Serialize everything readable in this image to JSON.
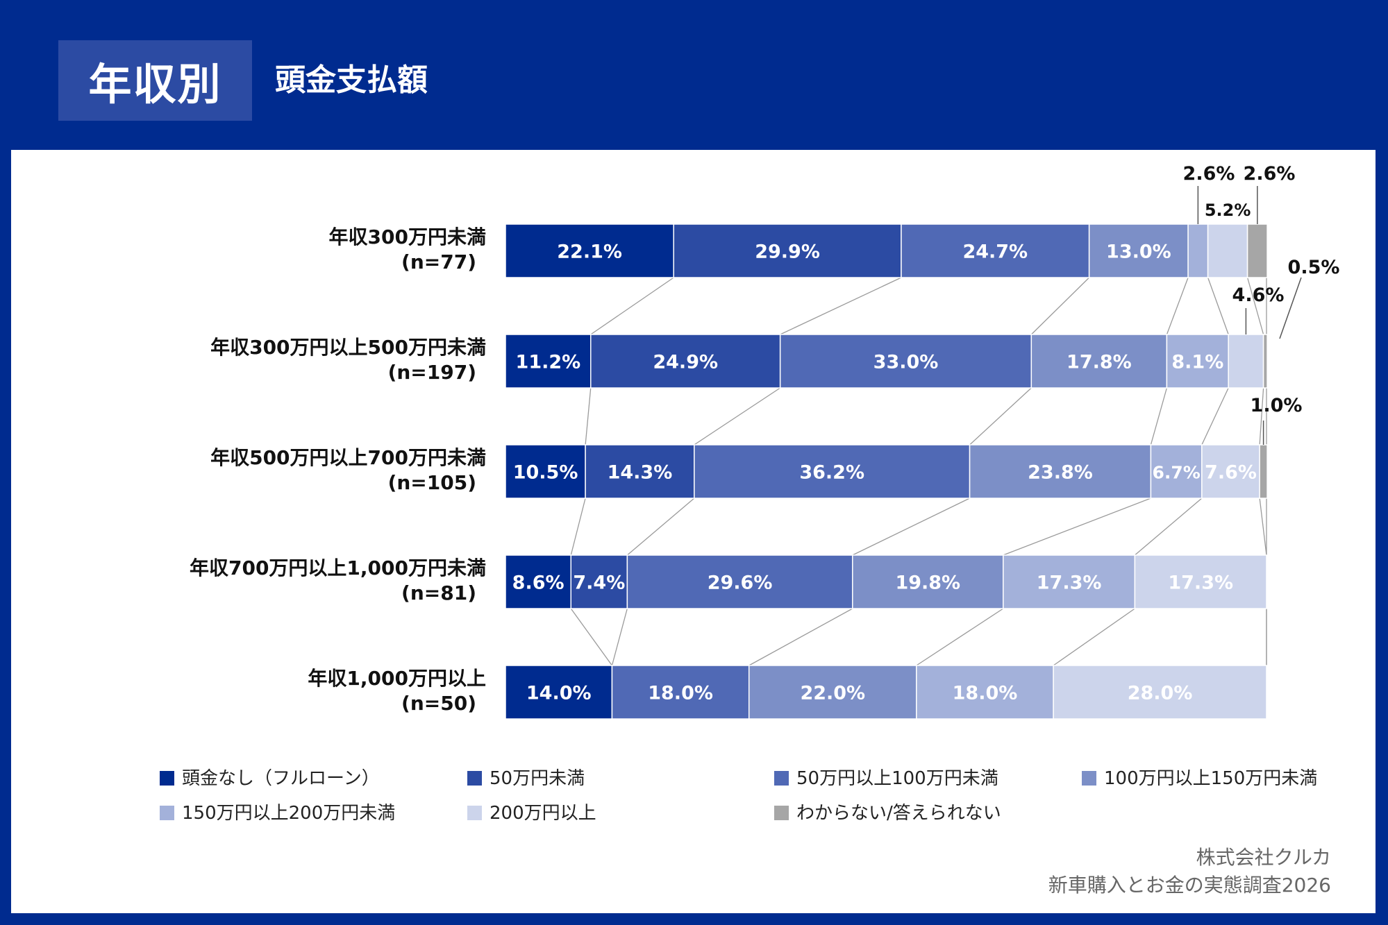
{
  "header": {
    "title": "年収別",
    "subtitle": "頭金支払額"
  },
  "source": {
    "company": "株式会社クルカ",
    "survey": "新車購入とお金の実態調査2026"
  },
  "colors": {
    "background": "#002B8F",
    "panel": "#FFFFFF",
    "title_box": "#2C4BA3"
  },
  "chart_data": {
    "type": "bar",
    "orientation": "horizontal-stacked-100",
    "title": "頭金支払額",
    "categories": [
      {
        "label": "年収300万円未満",
        "n": "(n=77)"
      },
      {
        "label": "年収300万円以上500万円未満",
        "n": "(n=197)"
      },
      {
        "label": "年収500万円以上700万円未満",
        "n": "(n=105)"
      },
      {
        "label": "年収700万円以上1,000万円未満",
        "n": "(n=81)"
      },
      {
        "label": "年収1,000万円以上",
        "n": "(n=50)"
      }
    ],
    "series": [
      {
        "name": "頭金なし（フルローン）",
        "color": "#002B8F",
        "text_color": "#FFFFFF",
        "values": [
          22.1,
          11.2,
          10.5,
          8.6,
          14.0
        ]
      },
      {
        "name": "50万円未満",
        "color": "#2C4BA3",
        "text_color": "#FFFFFF",
        "values": [
          29.9,
          24.9,
          14.3,
          7.4,
          0
        ]
      },
      {
        "name": "50万円以上100万円未満",
        "color": "#5069B5",
        "text_color": "#FFFFFF",
        "values": [
          24.7,
          33.0,
          36.2,
          29.6,
          18.0
        ]
      },
      {
        "name": "100万円以上150万円未満",
        "color": "#7C8FC7",
        "text_color": "#FFFFFF",
        "values": [
          13.0,
          17.8,
          23.8,
          19.8,
          22.0
        ]
      },
      {
        "name": "150万円以上200万円未満",
        "color": "#A3B1DA",
        "text_color": "#FFFFFF",
        "values": [
          2.6,
          8.1,
          6.7,
          17.3,
          18.0
        ]
      },
      {
        "name": "200万円以上",
        "color": "#CCD4EB",
        "text_color": "#FFFFFF",
        "values": [
          5.2,
          4.6,
          7.6,
          17.3,
          28.0
        ]
      },
      {
        "name": "わからない/答えられない",
        "color": "#A6A6A6",
        "text_color": "#FFFFFF",
        "values": [
          2.6,
          0.5,
          1.0,
          0,
          0
        ]
      }
    ],
    "value_suffix": "%",
    "xlim": [
      0,
      100
    ],
    "legend_position": "bottom"
  }
}
